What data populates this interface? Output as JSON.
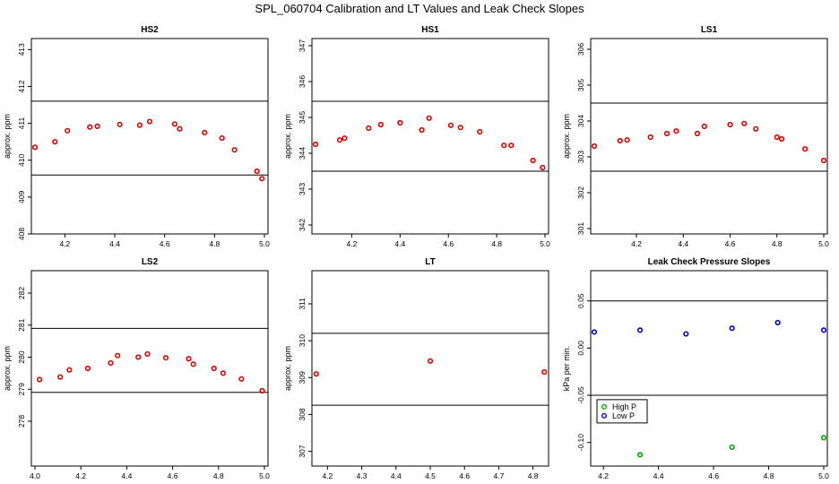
{
  "title": "SPL_060704  Calibration and LT Values and Leak Check Slopes",
  "chart_data": [
    {
      "type": "scatter",
      "title": "HS2",
      "ylabel": "approx. ppm",
      "color": "#dd0000",
      "xlim": [
        4.08,
        5.0
      ],
      "ylim": [
        408.0,
        413.3
      ],
      "xticks": [
        4.2,
        4.4,
        4.6,
        4.8,
        5.0
      ],
      "xtick_labels": [
        "4.2",
        "4.4",
        "4.6",
        "4.8",
        "5.0"
      ],
      "yticks": [
        408,
        409,
        410,
        411,
        412,
        413
      ],
      "ytick_labels": [
        "408",
        "409",
        "410",
        "411",
        "412",
        "413"
      ],
      "hlines": [
        411.6,
        409.6
      ],
      "x": [
        4.08,
        4.16,
        4.21,
        4.3,
        4.33,
        4.42,
        4.5,
        4.54,
        4.64,
        4.66,
        4.76,
        4.83,
        4.88,
        4.97,
        4.99
      ],
      "y": [
        410.35,
        410.5,
        410.8,
        410.9,
        410.92,
        410.97,
        410.95,
        411.05,
        410.98,
        410.85,
        410.75,
        410.6,
        410.28,
        409.7,
        409.5
      ]
    },
    {
      "type": "scatter",
      "title": "HS1",
      "ylabel": "approx. ppm",
      "color": "#dd0000",
      "xlim": [
        4.05,
        5.0
      ],
      "ylim": [
        341.75,
        347.2
      ],
      "xticks": [
        4.2,
        4.4,
        4.6,
        4.8,
        5.0
      ],
      "xtick_labels": [
        "4.2",
        "4.4",
        "4.6",
        "4.8",
        "5.0"
      ],
      "yticks": [
        342,
        343,
        344,
        345,
        346,
        347
      ],
      "ytick_labels": [
        "342",
        "343",
        "344",
        "345",
        "346",
        "347"
      ],
      "hlines": [
        345.45,
        343.5
      ],
      "x": [
        4.05,
        4.15,
        4.17,
        4.27,
        4.32,
        4.4,
        4.49,
        4.52,
        4.61,
        4.65,
        4.73,
        4.83,
        4.86,
        4.95,
        4.99
      ],
      "y": [
        344.25,
        344.37,
        344.42,
        344.7,
        344.8,
        344.85,
        344.65,
        344.98,
        344.78,
        344.72,
        344.6,
        344.22,
        344.22,
        343.8,
        343.6
      ]
    },
    {
      "type": "scatter",
      "title": "LS1",
      "ylabel": "approx. ppm",
      "color": "#dd0000",
      "xlim": [
        4.02,
        5.0
      ],
      "ylim": [
        300.85,
        306.3
      ],
      "xticks": [
        4.2,
        4.4,
        4.6,
        4.8,
        5.0
      ],
      "xtick_labels": [
        "4.2",
        "4.4",
        "4.6",
        "4.8",
        "5.0"
      ],
      "yticks": [
        301,
        302,
        303,
        304,
        305,
        306
      ],
      "ytick_labels": [
        "301",
        "302",
        "303",
        "304",
        "305",
        "306"
      ],
      "hlines": [
        304.5,
        302.6
      ],
      "x": [
        4.02,
        4.13,
        4.16,
        4.26,
        4.33,
        4.37,
        4.46,
        4.49,
        4.6,
        4.66,
        4.71,
        4.8,
        4.82,
        4.92,
        5.0
      ],
      "y": [
        303.3,
        303.45,
        303.47,
        303.55,
        303.65,
        303.72,
        303.65,
        303.85,
        303.9,
        303.93,
        303.78,
        303.55,
        303.5,
        303.22,
        302.9
      ]
    },
    {
      "type": "scatter",
      "title": "LS2",
      "ylabel": "approx. ppm",
      "color": "#dd0000",
      "xlim": [
        4.0,
        5.0
      ],
      "ylim": [
        276.6,
        282.7
      ],
      "xticks": [
        4.0,
        4.2,
        4.4,
        4.6,
        4.8,
        5.0
      ],
      "xtick_labels": [
        "4.0",
        "4.2",
        "4.4",
        "4.6",
        "4.8",
        "5.0"
      ],
      "yticks": [
        278,
        279,
        280,
        281,
        282
      ],
      "ytick_labels": [
        "278",
        "279",
        "280",
        "281",
        "282"
      ],
      "hlines": [
        280.9,
        278.9
      ],
      "x": [
        4.02,
        4.11,
        4.15,
        4.23,
        4.33,
        4.36,
        4.45,
        4.49,
        4.57,
        4.67,
        4.69,
        4.78,
        4.82,
        4.9,
        4.99
      ],
      "y": [
        279.3,
        279.38,
        279.6,
        279.65,
        279.82,
        280.05,
        280.0,
        280.1,
        279.98,
        279.95,
        279.78,
        279.65,
        279.5,
        279.32,
        278.95
      ]
    },
    {
      "type": "scatter",
      "title": "LT",
      "ylabel": "approx. ppm",
      "color": "#dd0000",
      "xlim": [
        4.165,
        4.835
      ],
      "ylim": [
        306.6,
        311.9
      ],
      "xticks": [
        4.2,
        4.3,
        4.4,
        4.5,
        4.6,
        4.7,
        4.8
      ],
      "xtick_labels": [
        "4.2",
        "4.3",
        "4.4",
        "4.5",
        "4.6",
        "4.7",
        "4.8"
      ],
      "yticks": [
        307,
        308,
        309,
        310,
        311
      ],
      "ytick_labels": [
        "307",
        "308",
        "309",
        "310",
        "311"
      ],
      "hlines": [
        310.2,
        308.25
      ],
      "x": [
        4.167,
        4.5,
        4.833
      ],
      "y": [
        309.1,
        309.45,
        309.15
      ]
    },
    {
      "type": "scatter",
      "title": "Leak Check Pressure Slopes",
      "ylabel": "kPa per min.",
      "xlim": [
        4.167,
        5.0
      ],
      "ylim": [
        -0.125,
        0.082
      ],
      "xticks": [
        4.2,
        4.4,
        4.6,
        4.8,
        5.0
      ],
      "xtick_labels": [
        "4.2",
        "4.4",
        "4.6",
        "4.8",
        "5.0"
      ],
      "yticks": [
        -0.1,
        -0.05,
        0.0,
        0.05
      ],
      "ytick_labels": [
        "-0.10",
        "-0.05",
        "0.00",
        "0.05"
      ],
      "hlines": [
        0.05,
        -0.05
      ],
      "legend": {
        "position": "bottom-left",
        "entries": [
          "High P",
          "Low P"
        ]
      },
      "series": [
        {
          "name": "High P",
          "color": "#00aa00",
          "x": [
            4.333,
            4.667,
            5.0
          ],
          "y": [
            -0.113,
            -0.105,
            -0.095
          ]
        },
        {
          "name": "Low P",
          "color": "#0000cc",
          "x": [
            4.167,
            4.333,
            4.5,
            4.667,
            4.833,
            5.0
          ],
          "y": [
            0.017,
            0.019,
            0.015,
            0.021,
            0.027,
            0.019
          ]
        }
      ]
    }
  ]
}
